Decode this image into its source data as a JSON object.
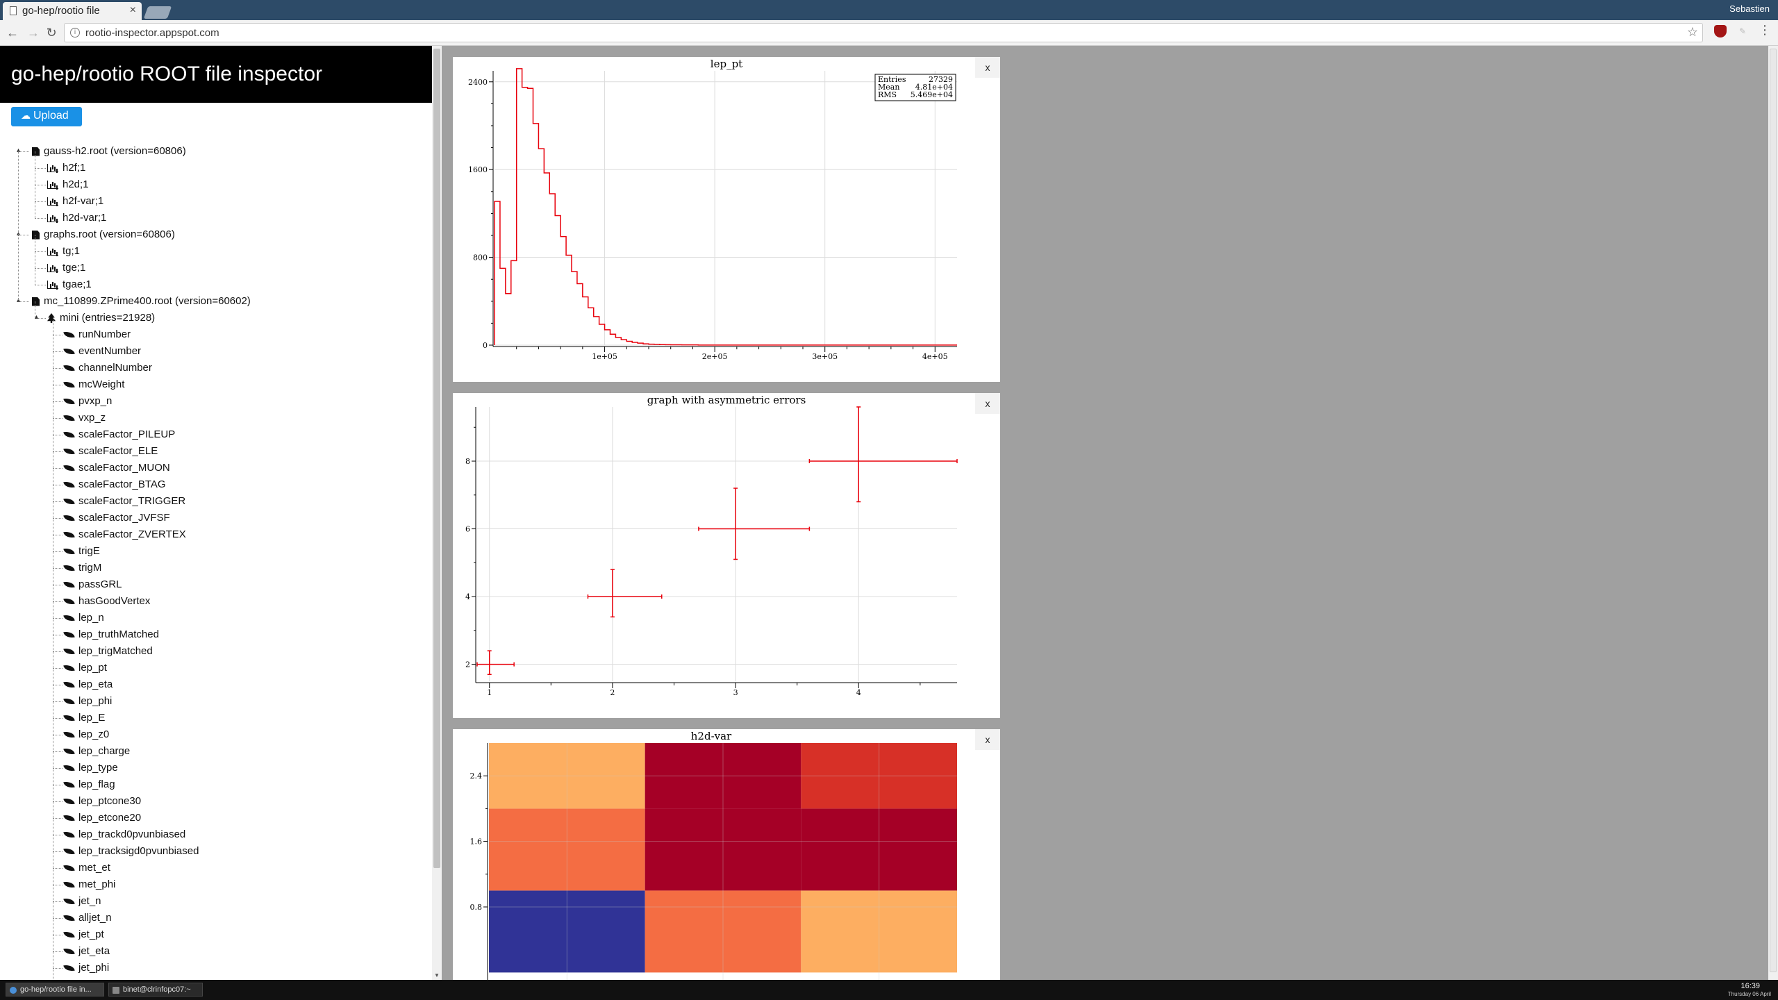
{
  "browser": {
    "tab_title": "go-hep/rootio file",
    "tab_close": "×",
    "profile": "Sebastien",
    "url": "rootio-inspector.appspot.com",
    "back": "←",
    "forward": "→",
    "reload": "↻",
    "star": "☆",
    "menu": "⋮",
    "info": "i"
  },
  "app": {
    "title": "go-hep/rootio ROOT file inspector",
    "upload_label": "Upload"
  },
  "tree": {
    "files": [
      {
        "label": "gauss-h2.root (version=60806)",
        "children": [
          "h2f;1",
          "h2d;1",
          "h2f-var;1",
          "h2d-var;1"
        ]
      },
      {
        "label": "graphs.root (version=60806)",
        "children": [
          "tg;1",
          "tge;1",
          "tgae;1"
        ]
      },
      {
        "label": "mc_110899.ZPrime400.root (version=60602)",
        "tree_label": "mini (entries=21928)",
        "branches": [
          "runNumber",
          "eventNumber",
          "channelNumber",
          "mcWeight",
          "pvxp_n",
          "vxp_z",
          "scaleFactor_PILEUP",
          "scaleFactor_ELE",
          "scaleFactor_MUON",
          "scaleFactor_BTAG",
          "scaleFactor_TRIGGER",
          "scaleFactor_JVFSF",
          "scaleFactor_ZVERTEX",
          "trigE",
          "trigM",
          "passGRL",
          "hasGoodVertex",
          "lep_n",
          "lep_truthMatched",
          "lep_trigMatched",
          "lep_pt",
          "lep_eta",
          "lep_phi",
          "lep_E",
          "lep_z0",
          "lep_charge",
          "lep_type",
          "lep_flag",
          "lep_ptcone30",
          "lep_etcone20",
          "lep_trackd0pvunbiased",
          "lep_tracksigd0pvunbiased",
          "met_et",
          "met_phi",
          "jet_n",
          "alljet_n",
          "jet_pt",
          "jet_eta",
          "jet_phi"
        ]
      }
    ]
  },
  "panels": {
    "close_label": "x"
  },
  "chart_data": [
    {
      "type": "line",
      "title": "lep_pt",
      "xlim": [
        0,
        420000
      ],
      "ylim": [
        0,
        2500
      ],
      "x_ticks": [
        100000,
        200000,
        300000,
        400000
      ],
      "x_tick_labels": [
        "1e+05",
        "2e+05",
        "3e+05",
        "4e+05"
      ],
      "y_ticks": [
        0,
        800,
        1600,
        2400
      ],
      "y_tick_labels": [
        "0",
        "800",
        "1600",
        "2400"
      ],
      "stats": [
        {
          "name": "Entries",
          "value": "27329"
        },
        {
          "name": "Mean",
          "value": "4.81e+04"
        },
        {
          "name": "RMS",
          "value": "5.469e+04"
        }
      ],
      "bin_width": 5000,
      "bin_start": 0,
      "counts": [
        1310,
        700,
        470,
        770,
        2520,
        2350,
        2340,
        2020,
        1790,
        1570,
        1380,
        1180,
        990,
        820,
        670,
        560,
        440,
        340,
        260,
        190,
        140,
        100,
        70,
        50,
        35,
        25,
        18,
        12,
        9,
        7,
        5,
        4,
        3,
        3,
        2,
        2,
        2,
        1,
        1,
        1,
        1,
        1,
        1,
        1,
        1,
        1,
        1,
        1,
        1,
        1,
        1,
        1,
        1,
        1,
        1,
        1,
        1,
        1,
        1,
        1,
        1,
        1,
        1,
        1,
        1,
        1,
        1,
        1,
        1,
        1,
        1,
        1,
        1,
        1,
        1,
        1,
        1,
        1,
        1,
        1,
        1,
        1,
        1,
        1
      ],
      "grid": true,
      "color": "#e8000b"
    },
    {
      "type": "scatter",
      "title": "graph with asymmetric errors",
      "xlim": [
        0.9,
        4.8
      ],
      "ylim": [
        1.5,
        9.6
      ],
      "x_ticks": [
        1,
        2,
        3,
        4
      ],
      "x_tick_labels": [
        "1",
        "2",
        "3",
        "4"
      ],
      "y_ticks": [
        2,
        4,
        6,
        8
      ],
      "y_tick_labels": [
        "2",
        "4",
        "6",
        "8"
      ],
      "points": [
        {
          "x": 1,
          "y": 2,
          "exl": 0.1,
          "exh": 0.2,
          "eyl": 0.3,
          "eyh": 0.4
        },
        {
          "x": 2,
          "y": 4,
          "exl": 0.2,
          "exh": 0.4,
          "eyl": 0.6,
          "eyh": 0.8
        },
        {
          "x": 3,
          "y": 6,
          "exl": 0.3,
          "exh": 0.6,
          "eyl": 0.9,
          "eyh": 1.2
        },
        {
          "x": 4,
          "y": 8,
          "exl": 0.4,
          "exh": 0.8,
          "eyl": 1.2,
          "eyh": 1.6
        }
      ],
      "grid": true,
      "color": "#e8000b"
    },
    {
      "type": "heatmap",
      "title": "h2d-var",
      "x_edges": [
        0,
        1,
        2,
        3
      ],
      "y_edges": [
        0,
        1.0,
        2.0,
        2.8
      ],
      "ylim": [
        0.5,
        2.8
      ],
      "y_ticks": [
        0.8,
        1.6,
        2.4
      ],
      "y_tick_labels": [
        "0.8",
        "1.6",
        "2.4"
      ],
      "cells": [
        [
          "#303396",
          "#f46d43",
          "#fdae61"
        ],
        [
          "#f46d43",
          "#a50026",
          "#a50026"
        ],
        [
          "#fdae61",
          "#a50026",
          "#d73027"
        ]
      ],
      "grid": true
    }
  ],
  "taskbar": {
    "task1": "go-hep/rootio file in...",
    "task2": "binet@clrinfopc07:~",
    "time": "16:39",
    "date": "Thursday 06 April"
  }
}
